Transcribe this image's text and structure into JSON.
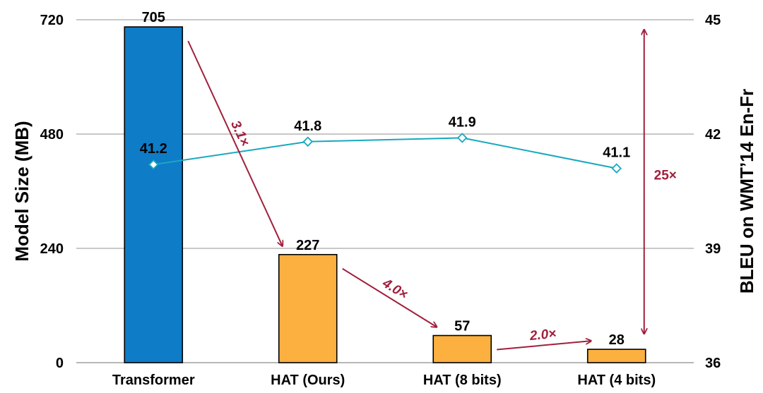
{
  "chart_data": {
    "type": "bar",
    "categories": [
      "Transformer",
      "HAT (Ours)",
      "HAT (8 bits)",
      "HAT (4 bits)"
    ],
    "series": [
      {
        "name": "Model Size (MB)",
        "type": "bar",
        "axis": "left",
        "values": [
          705,
          227,
          57,
          28
        ],
        "colors": [
          "#0E7CC7",
          "#FBB040",
          "#FBB040",
          "#FBB040"
        ]
      },
      {
        "name": "BLEU on WMT'14 En-Fr",
        "type": "line",
        "axis": "right",
        "values": [
          41.2,
          41.8,
          41.9,
          41.1
        ],
        "color": "#17A9BE"
      }
    ],
    "bar_labels": [
      "705",
      "227",
      "57",
      "28"
    ],
    "line_labels": [
      "41.2",
      "41.8",
      "41.9",
      "41.1"
    ],
    "ylabel": "Model Size (MB)",
    "y2label": "BLEU on WMT’14 En-Fr",
    "ylim": [
      0,
      720
    ],
    "yticks": [
      0,
      240,
      480,
      720
    ],
    "y2lim": [
      36,
      45
    ],
    "y2ticks": [
      36,
      39,
      42,
      45
    ],
    "grid": true,
    "annotation_color": "#A0203C",
    "annotations": [
      {
        "text": "3.1×",
        "from": "Transformer",
        "to": "HAT (Ours)"
      },
      {
        "text": "4.0×",
        "from": "HAT (Ours)",
        "to": "HAT (8 bits)"
      },
      {
        "text": "2.0×",
        "from": "HAT (8 bits)",
        "to": "HAT (4 bits)"
      },
      {
        "text": "25×",
        "from": "Transformer",
        "to": "HAT (4 bits)"
      }
    ]
  }
}
